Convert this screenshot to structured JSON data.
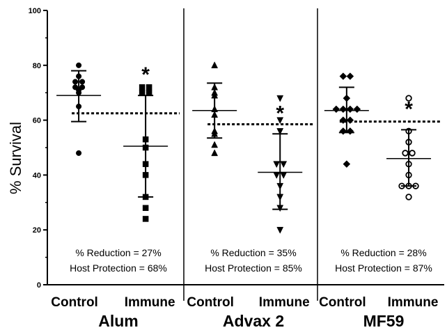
{
  "chart_data": {
    "type": "scatter",
    "ylabel": "% Survival",
    "ylim": [
      0,
      100
    ],
    "yticks": [
      "0",
      "20",
      "40",
      "60",
      "80",
      "100"
    ],
    "grid": false,
    "panels": [
      {
        "name": "Alum",
        "marker": "circle",
        "groups": [
          {
            "label": "Control",
            "values": [
              80,
              76,
              74,
              74,
              72,
              72,
              71,
              70,
              65,
              48
            ],
            "mean": 69,
            "sd_range": [
              59.5,
              78
            ],
            "star": ""
          },
          {
            "label": "Immune",
            "values": [
              72,
              72,
              70,
              70,
              53,
              50,
              44,
              40,
              32,
              28,
              24
            ],
            "mean": 50.5,
            "sd_range": [
              32,
              69
            ],
            "star": "*"
          }
        ],
        "reference_line": 62.5,
        "reduction": "% Reduction = 27%",
        "protection": "Host Protection = 68%"
      },
      {
        "name": "Advax 2",
        "marker": "triangle-up",
        "groups": [
          {
            "label": "Control",
            "values": [
              80,
              72,
              70,
              69,
              64,
              62,
              56,
              55,
              51,
              48
            ],
            "mean": 63.5,
            "sd_range": [
              53.5,
              73.5
            ],
            "star": ""
          },
          {
            "label": "Immune",
            "values": [
              68,
              60,
              56,
              44,
              44,
              40,
              40,
              36,
              32,
              28,
              20
            ],
            "mean": 41,
            "sd_range": [
              27.5,
              55
            ],
            "star": "*"
          }
        ],
        "reference_line": 58.5,
        "reduction": "% Reduction = 35%",
        "protection": "Host Protection = 85%"
      },
      {
        "name": "MF59",
        "marker": "diamond",
        "groups": [
          {
            "label": "Control",
            "values": [
              76,
              76,
              68,
              64,
              64,
              64,
              64,
              60,
              60,
              56,
              56,
              44
            ],
            "mean": 63.5,
            "sd_range": [
              55.5,
              72
            ],
            "star": ""
          },
          {
            "label": "Immune",
            "values": [
              68,
              56,
              52,
              48,
              48,
              44,
              40,
              36,
              36,
              36,
              32
            ],
            "mean": 46,
            "sd_range": [
              36,
              56.5
            ],
            "star": "*"
          }
        ],
        "reference_line": 59.5,
        "reduction": "% Reduction = 28%",
        "protection": "Host Protection = 87%"
      }
    ]
  }
}
